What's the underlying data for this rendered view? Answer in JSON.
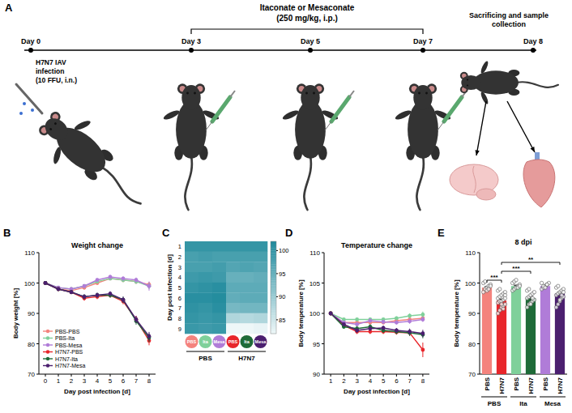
{
  "diagram": {
    "panel": "A",
    "treatment": [
      "Itaconate or Mesaconate",
      "(250 mg/kg, i.p.)"
    ],
    "infection": [
      "H7N7 IAV",
      "infection",
      "(10 FFU, i.n.)"
    ],
    "days": [
      "Day 0",
      "Day 3",
      "Day 5",
      "Day 7",
      "Day 8"
    ],
    "sampling": [
      "Sacrificing and sample",
      "collection"
    ]
  },
  "chart_data": [
    {
      "panel": "B",
      "type": "line",
      "title": "Weight change",
      "x_label": "Day post infection [d]",
      "y_label": "Body weight [%]",
      "x": [
        0,
        1,
        2,
        3,
        4,
        5,
        6,
        7,
        8
      ],
      "xlim": [
        -0.5,
        8.5
      ],
      "xticks": [
        0,
        1,
        2,
        3,
        4,
        5,
        6,
        7,
        8
      ],
      "ylim": [
        70,
        110
      ],
      "yticks": [
        70,
        80,
        90,
        100,
        110
      ],
      "legend": "lower left",
      "marker": "circle",
      "series": [
        {
          "name": "PBS-PBS",
          "color": "#f4837d",
          "values": [
            100,
            98,
            97.5,
            98.5,
            100,
            101.5,
            101,
            100.5,
            99.5
          ],
          "errors": [
            0,
            0.5,
            0.6,
            0.7,
            0.6,
            0.6,
            0.7,
            0.8,
            0.9
          ]
        },
        {
          "name": "PBS-Ita",
          "color": "#7fd09a",
          "values": [
            100,
            98.5,
            98,
            99,
            100.5,
            101.5,
            101,
            100.5,
            99
          ],
          "errors": [
            0,
            0.5,
            0.6,
            0.6,
            0.6,
            0.6,
            0.7,
            0.8,
            1
          ]
        },
        {
          "name": "PBS-Mesa",
          "color": "#b07cd8",
          "values": [
            100,
            98.5,
            98,
            99,
            101,
            102,
            101.5,
            101,
            99
          ],
          "errors": [
            0,
            0.5,
            0.6,
            0.6,
            0.6,
            0.7,
            0.7,
            0.8,
            1.5
          ]
        },
        {
          "name": "H7N7-PBS",
          "color": "#e8262b",
          "values": [
            100,
            98,
            97,
            95,
            95.5,
            96,
            94,
            88,
            81
          ],
          "errors": [
            0,
            0.4,
            0.6,
            0.8,
            0.8,
            0.8,
            1,
            1.2,
            1.5
          ]
        },
        {
          "name": "H7N7-Ita",
          "color": "#1e6b38",
          "values": [
            100,
            98,
            97,
            95.5,
            96,
            96,
            94.5,
            87.5,
            82
          ],
          "errors": [
            0,
            0.4,
            0.6,
            0.8,
            0.8,
            0.8,
            1,
            1.2,
            1.4
          ]
        },
        {
          "name": "H7N7-Mesa",
          "color": "#4b1f6f",
          "values": [
            100,
            98,
            97,
            95.5,
            96,
            96.5,
            94.5,
            88,
            82.5
          ],
          "errors": [
            0,
            0.4,
            0.6,
            0.8,
            0.8,
            0.8,
            1,
            1.2,
            1.4
          ]
        }
      ]
    },
    {
      "panel": "C",
      "type": "heatmap",
      "y_label": "Day post infection [d]",
      "categories": [
        "PBS",
        "Ita",
        "Mesa",
        "PBS",
        "Ita",
        "Mesa"
      ],
      "colors": [
        "#f4837d",
        "#7fd09a",
        "#b07cd8",
        "#e8262b",
        "#1e6b38",
        "#4b1f6f"
      ],
      "groups": [
        "PBS",
        "H7N7"
      ],
      "rows": [
        1,
        2,
        3,
        4,
        5,
        6,
        7,
        8,
        9
      ],
      "values": [
        [
          100,
          100,
          100,
          100,
          100,
          100
        ],
        [
          98,
          98.5,
          98,
          98,
          98,
          98
        ],
        [
          98,
          98,
          98.5,
          97,
          97.5,
          97
        ],
        [
          99,
          99.5,
          99,
          95,
          95,
          95.5
        ],
        [
          100,
          100.5,
          101,
          96,
          96,
          96
        ],
        [
          101,
          101,
          101.5,
          95.5,
          96,
          96
        ],
        [
          100.5,
          100,
          101,
          93.5,
          94,
          94
        ],
        [
          100,
          99.5,
          100,
          88,
          87.5,
          88
        ],
        [
          99.5,
          99,
          99.5,
          81,
          82,
          82.5
        ]
      ],
      "clim": [
        82,
        102
      ],
      "cticks": [
        85,
        90,
        95,
        100
      ]
    },
    {
      "panel": "D",
      "type": "line",
      "title": "Temperature change",
      "x_label": "Day post infection [d]",
      "y_label": "Body temperature [%]",
      "x": [
        1,
        2,
        3,
        4,
        5,
        6,
        7,
        8
      ],
      "xlim": [
        0.5,
        8.5
      ],
      "xticks": [
        1,
        2,
        3,
        4,
        5,
        6,
        7,
        8
      ],
      "ylim": [
        90,
        110
      ],
      "yticks": [
        90,
        95,
        100,
        105,
        110
      ],
      "marker": "circle",
      "series": [
        {
          "name": "PBS-PBS",
          "color": "#f4837d",
          "values": [
            100,
            98.5,
            98.5,
            98.5,
            98.5,
            98.8,
            99,
            99.2
          ],
          "errors": [
            0,
            0.3,
            0.3,
            0.3,
            0.3,
            0.3,
            0.4,
            0.4
          ]
        },
        {
          "name": "PBS-Ita",
          "color": "#7fd09a",
          "values": [
            100,
            99,
            99,
            99,
            99,
            99.2,
            99.6,
            99.8
          ],
          "errors": [
            0,
            0.3,
            0.3,
            0.3,
            0.3,
            0.3,
            0.4,
            0.5
          ]
        },
        {
          "name": "PBS-Mesa",
          "color": "#b07cd8",
          "values": [
            100,
            98.5,
            98.2,
            98.8,
            98.6,
            98.5,
            98.7,
            99
          ],
          "errors": [
            0,
            0.3,
            0.3,
            0.3,
            0.3,
            0.3,
            0.4,
            0.4
          ]
        },
        {
          "name": "H7N7-PBS",
          "color": "#e8262b",
          "values": [
            100,
            98,
            97,
            97,
            97,
            96.9,
            96.8,
            94
          ],
          "errors": [
            0,
            0.3,
            0.4,
            0.4,
            0.4,
            0.4,
            0.5,
            1.2
          ]
        },
        {
          "name": "H7N7-Ita",
          "color": "#1e6b38",
          "values": [
            100,
            97.8,
            97.5,
            97.8,
            97.2,
            97,
            96.8,
            96.5
          ],
          "errors": [
            0,
            0.3,
            0.4,
            0.4,
            0.4,
            0.4,
            0.5,
            0.6
          ]
        },
        {
          "name": "H7N7-Mesa",
          "color": "#4b1f6f",
          "values": [
            100,
            98.2,
            97.2,
            97.5,
            97.6,
            97.2,
            97,
            96.7
          ],
          "errors": [
            0,
            0.3,
            0.4,
            0.4,
            0.4,
            0.4,
            0.5,
            0.6
          ]
        }
      ]
    },
    {
      "panel": "E",
      "type": "bar",
      "title": "8 dpi",
      "y_label": "Body temperature [%]",
      "categories": [
        "PBS",
        "H7N7",
        "PBS",
        "H7N7",
        "PBS",
        "H7N7"
      ],
      "groups": [
        "PBS",
        "Ita",
        "Mesa"
      ],
      "colors": [
        "#f4837d",
        "#e8262b",
        "#7fd09a",
        "#1e6b38",
        "#b07cd8",
        "#4b1f6f"
      ],
      "values": [
        98.5,
        94.2,
        99,
        95,
        99,
        96.5
      ],
      "errors": [
        0.3,
        0.5,
        0.3,
        0.5,
        0.3,
        0.5
      ],
      "points": [
        [
          97,
          98,
          98.5,
          99,
          99.5,
          100,
          100.5,
          97.5,
          98,
          99
        ],
        [
          90,
          91,
          92,
          92.5,
          93,
          93.5,
          94,
          94,
          94.5,
          95,
          95,
          95.5,
          96,
          96.5,
          97,
          97.5,
          98,
          93,
          91.5,
          96
        ],
        [
          97.5,
          98,
          98.5,
          99,
          99.5,
          100,
          100.5,
          101,
          98.5,
          99
        ],
        [
          92,
          93,
          93.5,
          94,
          94.5,
          95,
          95.5,
          96,
          96.5,
          97,
          97.5,
          98,
          93,
          95
        ],
        [
          98,
          98.5,
          99,
          99.5,
          100,
          100,
          99,
          98.5,
          99.5
        ],
        [
          92,
          93,
          94,
          95,
          95.5,
          96,
          96.5,
          97,
          97.5,
          98,
          98.5,
          99,
          94.5,
          96,
          97
        ]
      ],
      "ylim": [
        70,
        110
      ],
      "yticks": [
        70,
        80,
        90,
        100,
        110
      ],
      "annotations": [
        {
          "text": "***",
          "categories": [
            0,
            1
          ]
        },
        {
          "text": "***",
          "categories": [
            1,
            3
          ]
        },
        {
          "text": "**",
          "categories": [
            1,
            5
          ]
        }
      ]
    }
  ]
}
